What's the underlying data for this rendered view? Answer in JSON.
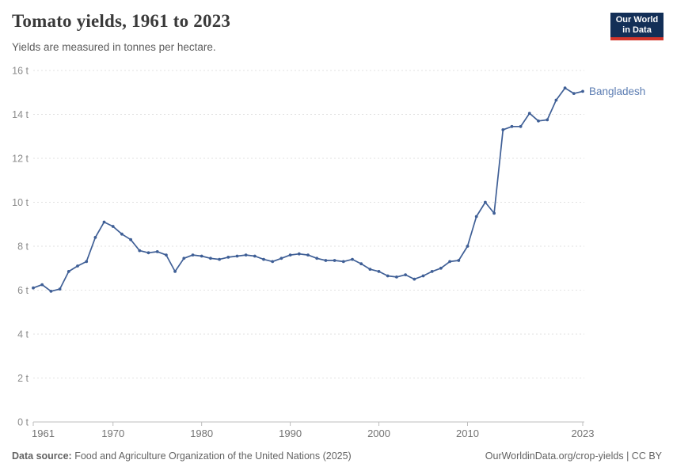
{
  "header": {
    "title": "Tomato yields, 1961 to 2023",
    "subtitle": "Yields are measured in tonnes per hectare.",
    "logo": {
      "line1": "Our World",
      "line2": "in Data"
    }
  },
  "chart_data": {
    "type": "line",
    "title": "Tomato yields, 1961 to 2023",
    "ylabel": "tonnes per hectare",
    "xlim": [
      1961,
      2023
    ],
    "ylim": [
      0,
      16
    ],
    "x_ticks": [
      1961,
      1970,
      1980,
      1990,
      2000,
      2010,
      2023
    ],
    "y_ticks": [
      0,
      2,
      4,
      6,
      8,
      10,
      12,
      14,
      16
    ],
    "y_tick_suffix": " t",
    "grid": "horizontal-dashed",
    "legend_position": "end-of-line-label",
    "series": [
      {
        "name": "Bangladesh",
        "color": "#3f5f96",
        "x": [
          1961,
          1962,
          1963,
          1964,
          1965,
          1966,
          1967,
          1968,
          1969,
          1970,
          1971,
          1972,
          1973,
          1974,
          1975,
          1976,
          1977,
          1978,
          1979,
          1980,
          1981,
          1982,
          1983,
          1984,
          1985,
          1986,
          1987,
          1988,
          1989,
          1990,
          1991,
          1992,
          1993,
          1994,
          1995,
          1996,
          1997,
          1998,
          1999,
          2000,
          2001,
          2002,
          2003,
          2004,
          2005,
          2006,
          2007,
          2008,
          2009,
          2010,
          2011,
          2012,
          2013,
          2014,
          2015,
          2016,
          2017,
          2018,
          2019,
          2020,
          2021,
          2022,
          2023
        ],
        "values": [
          6.1,
          6.25,
          5.95,
          6.05,
          6.85,
          7.1,
          7.3,
          8.4,
          9.1,
          8.9,
          8.55,
          8.3,
          7.8,
          7.7,
          7.75,
          7.6,
          6.85,
          7.45,
          7.6,
          7.55,
          7.45,
          7.4,
          7.5,
          7.55,
          7.6,
          7.55,
          7.4,
          7.3,
          7.45,
          7.6,
          7.65,
          7.6,
          7.45,
          7.35,
          7.35,
          7.3,
          7.4,
          7.2,
          6.95,
          6.85,
          6.65,
          6.6,
          6.7,
          6.5,
          6.65,
          6.85,
          7.0,
          7.3,
          7.35,
          8.0,
          9.35,
          10.0,
          9.5,
          13.3,
          13.45,
          13.45,
          14.05,
          13.7,
          13.75,
          14.65,
          15.2,
          14.95,
          15.05
        ]
      }
    ]
  },
  "colors": {
    "title": "#3a3a3a",
    "subtitle": "#5c5c5c",
    "footer": "#636363",
    "line": "#3f5f96",
    "entity_label": "#5b7cb2",
    "grid": "#e2e2e2",
    "axis": "#bdbdbd",
    "x_tick_text": "#737373",
    "y_tick_text": "#8c8c8c",
    "logo_bg": "#132f57",
    "logo_red": "#d2352b"
  },
  "footer": {
    "source_label": "Data source:",
    "source_text": " Food and Agriculture Organization of the United Nations (2025)",
    "credit": "OurWorldinData.org/crop-yields | CC BY"
  }
}
